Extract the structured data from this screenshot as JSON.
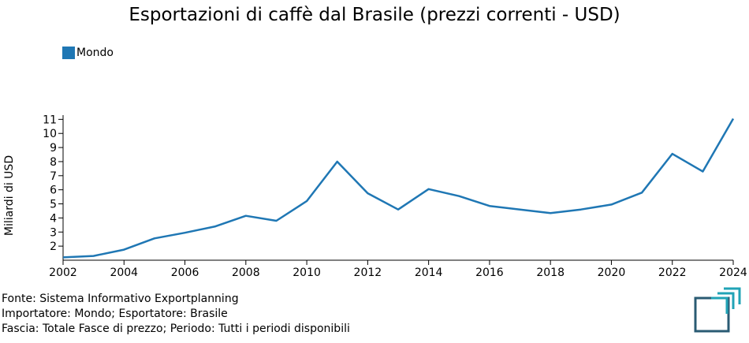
{
  "title": "Esportazioni di caffè dal Brasile (prezzi correnti - USD)",
  "legend": {
    "label": "Mondo",
    "color": "#1f77b4"
  },
  "footer": {
    "line1": "Fonte: Sistema Informativo Exportplanning",
    "line2": "Importatore: Mondo; Esportatore: Brasile",
    "line3": "Fascia: Totale Fasce di prezzo; Periodo: Tutti i periodi disponibili"
  },
  "chart_data": {
    "type": "line",
    "title": "Esportazioni di caffè dal Brasile (prezzi correnti - USD)",
    "xlabel": "",
    "ylabel": "Miliardi di USD",
    "xlim": [
      2002,
      2024
    ],
    "ylim": [
      1,
      11.3
    ],
    "x_ticks": [
      2002,
      2004,
      2006,
      2008,
      2010,
      2012,
      2014,
      2016,
      2018,
      2020,
      2022,
      2024
    ],
    "y_ticks": [
      2,
      3,
      4,
      5,
      6,
      7,
      8,
      9,
      10,
      11
    ],
    "legend_position": "top-left",
    "grid": false,
    "series": [
      {
        "name": "Mondo",
        "color": "#1f77b4",
        "x": [
          2002,
          2003,
          2004,
          2005,
          2006,
          2007,
          2008,
          2009,
          2010,
          2011,
          2012,
          2013,
          2014,
          2015,
          2016,
          2017,
          2018,
          2019,
          2020,
          2021,
          2022,
          2023,
          2024
        ],
        "y": [
          1.2,
          1.3,
          1.75,
          2.55,
          2.95,
          3.4,
          4.15,
          3.8,
          5.2,
          8.0,
          5.75,
          4.6,
          6.05,
          5.55,
          4.85,
          4.6,
          4.35,
          4.6,
          4.95,
          5.8,
          8.55,
          7.3,
          11.05
        ]
      }
    ]
  },
  "logo": {
    "name": "exportplanning-logo",
    "colors": [
      "#2a5b73",
      "#21a3b6"
    ]
  }
}
